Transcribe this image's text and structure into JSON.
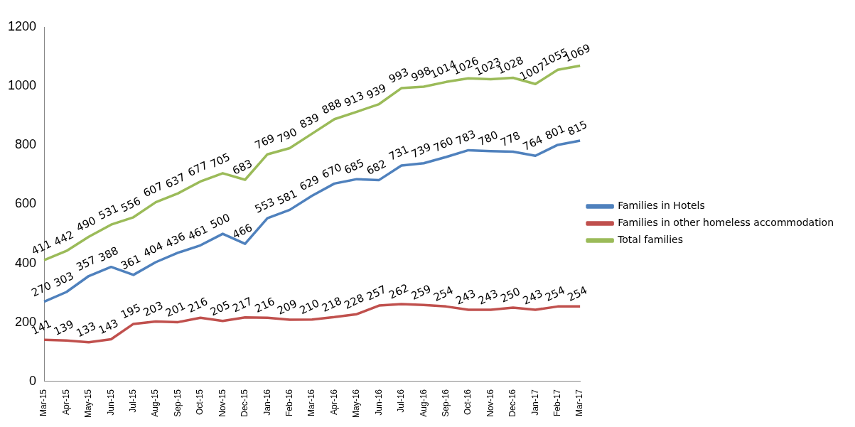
{
  "chart_data": {
    "type": "line",
    "categories": [
      "Mar-15",
      "Apr-15",
      "May-15",
      "Jun-15",
      "Jul-15",
      "Aug-15",
      "Sep-15",
      "Oct-15",
      "Nov-15",
      "Dec-15",
      "Jan-16",
      "Feb-16",
      "Mar-16",
      "Apr-16",
      "May-16",
      "Jun-16",
      "Jul-16",
      "Aug-16",
      "Sep-16",
      "Oct-16",
      "Nov-16",
      "Dec-16",
      "Jan-17",
      "Feb-17",
      "Mar-17"
    ],
    "series": [
      {
        "name": "Families in Hotels",
        "color": "#4f81bd",
        "values": [
          270,
          303,
          357,
          388,
          361,
          404,
          436,
          461,
          500,
          466,
          553,
          581,
          629,
          670,
          685,
          682,
          731,
          739,
          760,
          783,
          780,
          778,
          764,
          801,
          815
        ]
      },
      {
        "name": "Families in other homeless accommodation",
        "color": "#c0504d",
        "values": [
          141,
          139,
          133,
          143,
          195,
          203,
          201,
          216,
          205,
          217,
          216,
          209,
          210,
          218,
          228,
          257,
          262,
          259,
          254,
          243,
          243,
          250,
          243,
          254,
          254
        ]
      },
      {
        "name": "Total families",
        "color": "#9bbb59",
        "values": [
          411,
          442,
          490,
          531,
          556,
          607,
          637,
          677,
          705,
          683,
          769,
          790,
          839,
          888,
          913,
          939,
          993,
          998,
          1014,
          1026,
          1023,
          1028,
          1007,
          1055,
          1069
        ]
      }
    ],
    "ylim": [
      0,
      1200
    ],
    "yticks": [
      0,
      200,
      400,
      600,
      800,
      1000,
      1200
    ],
    "grid": false,
    "legend": "right",
    "marker": "none",
    "line_style": "solid",
    "data_labels": true
  }
}
